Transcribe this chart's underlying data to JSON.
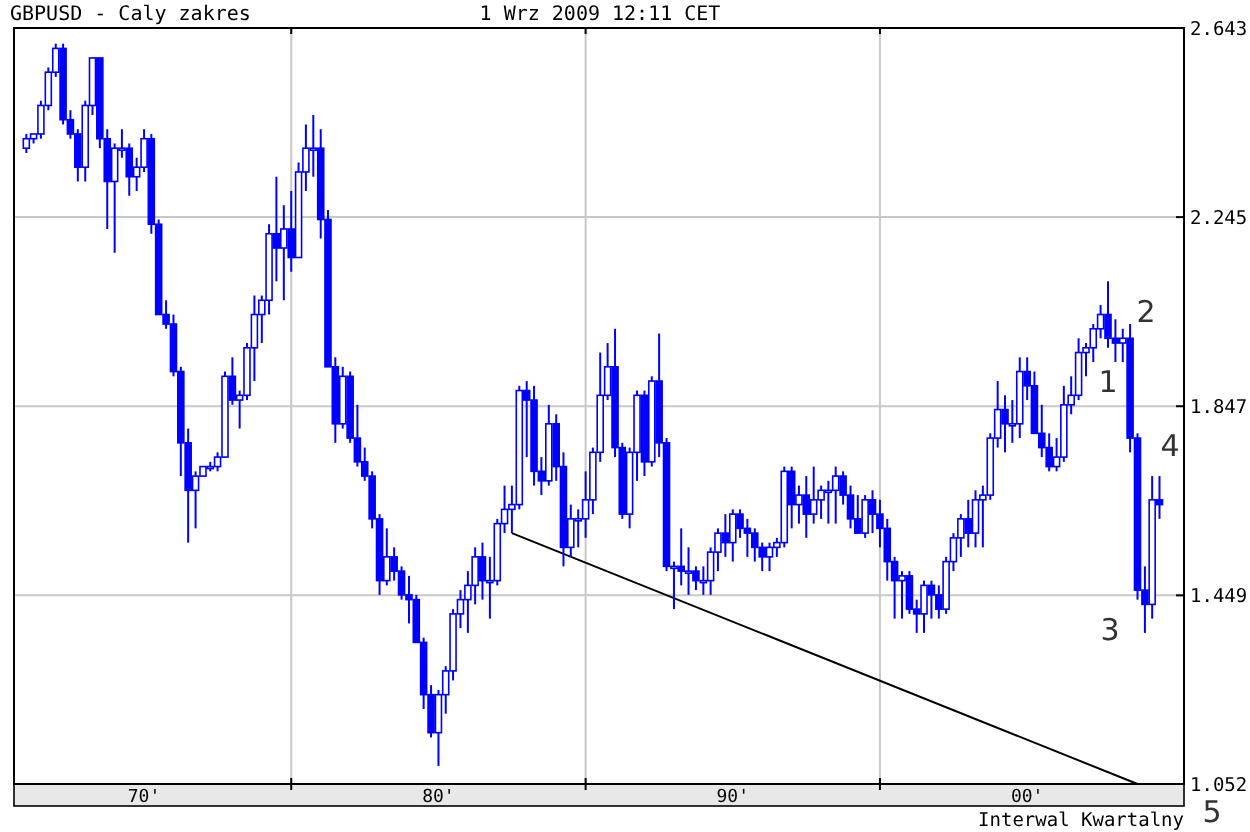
{
  "chart_data": {
    "type": "candlestick",
    "title": "GBPUSD - Caly zakres",
    "subtitle": "1 Wrz 2009 12:11 CET",
    "annotations": [
      "Interwal Kwartalny",
      "1",
      "2",
      "3",
      "4",
      "5"
    ],
    "xlim": [
      "1970-08",
      "2010-05"
    ],
    "xticks": [
      {
        "value": "1980",
        "label": null
      },
      {
        "value": "1990",
        "label": null
      },
      {
        "value": "2000",
        "label": null
      },
      {
        "value": "1975",
        "label": "70'"
      },
      {
        "value": "1985",
        "label": "80'"
      },
      {
        "value": "1995",
        "label": "90'"
      },
      {
        "value": "2005",
        "label": "00'"
      }
    ],
    "ylim": [
      1.052,
      2.643
    ],
    "yticks": [
      1.052,
      1.449,
      1.847,
      2.245,
      2.643
    ],
    "grid": true,
    "color": "#0000ff",
    "x": [
      "1971-01",
      "1971-04",
      "1971-07",
      "1971-10",
      "1972-01",
      "1972-04",
      "1972-07",
      "1972-10",
      "1973-01",
      "1973-04",
      "1973-07",
      "1973-10",
      "1974-01",
      "1974-04",
      "1974-07",
      "1974-10",
      "1975-01",
      "1975-04",
      "1975-07",
      "1975-10",
      "1976-01",
      "1976-04",
      "1976-07",
      "1976-10",
      "1977-01",
      "1977-04",
      "1977-07",
      "1977-10",
      "1978-01",
      "1978-04",
      "1978-07",
      "1978-10",
      "1979-01",
      "1979-04",
      "1979-07",
      "1979-10",
      "1980-01",
      "1980-04",
      "1980-07",
      "1980-10",
      "1981-01",
      "1981-04",
      "1981-07",
      "1981-10",
      "1982-01",
      "1982-04",
      "1982-07",
      "1982-10",
      "1983-01",
      "1983-04",
      "1983-07",
      "1983-10",
      "1984-01",
      "1984-04",
      "1984-07",
      "1984-10",
      "1985-01",
      "1985-04",
      "1985-07",
      "1985-10",
      "1986-01",
      "1986-04",
      "1986-07",
      "1986-10",
      "1987-01",
      "1987-04",
      "1987-07",
      "1987-10",
      "1988-01",
      "1988-04",
      "1988-07",
      "1988-10",
      "1989-01",
      "1989-04",
      "1989-07",
      "1989-10",
      "1990-01",
      "1990-04",
      "1990-07",
      "1990-10",
      "1991-01",
      "1991-04",
      "1991-07",
      "1991-10",
      "1992-01",
      "1992-04",
      "1992-07",
      "1992-10",
      "1993-01",
      "1993-04",
      "1993-07",
      "1993-10",
      "1994-01",
      "1994-04",
      "1994-07",
      "1994-10",
      "1995-01",
      "1995-04",
      "1995-07",
      "1995-10",
      "1996-01",
      "1996-04",
      "1996-07",
      "1996-10",
      "1997-01",
      "1997-04",
      "1997-07",
      "1997-10",
      "1998-01",
      "1998-04",
      "1998-07",
      "1998-10",
      "1999-01",
      "1999-04",
      "1999-07",
      "1999-10",
      "2000-01",
      "2000-04",
      "2000-07",
      "2000-10",
      "2001-01",
      "2001-04",
      "2001-07",
      "2001-10",
      "2002-01",
      "2002-04",
      "2002-07",
      "2002-10",
      "2003-01",
      "2003-04",
      "2003-07",
      "2003-10",
      "2004-01",
      "2004-04",
      "2004-07",
      "2004-10",
      "2005-01",
      "2005-04",
      "2005-07",
      "2005-10",
      "2006-01",
      "2006-04",
      "2006-07",
      "2006-10",
      "2007-01",
      "2007-04",
      "2007-07",
      "2007-10",
      "2008-01",
      "2008-04",
      "2008-07",
      "2008-10",
      "2009-01",
      "2009-04",
      "2009-07"
    ],
    "ohlc": [
      [
        2.39,
        2.42,
        2.38,
        2.41
      ],
      [
        2.41,
        2.42,
        2.4,
        2.42
      ],
      [
        2.42,
        2.49,
        2.41,
        2.48
      ],
      [
        2.48,
        2.56,
        2.47,
        2.55
      ],
      [
        2.55,
        2.61,
        2.54,
        2.6
      ],
      [
        2.6,
        2.61,
        2.44,
        2.45
      ],
      [
        2.45,
        2.47,
        2.41,
        2.42
      ],
      [
        2.42,
        2.43,
        2.32,
        2.35
      ],
      [
        2.35,
        2.49,
        2.32,
        2.48
      ],
      [
        2.48,
        2.58,
        2.46,
        2.58
      ],
      [
        2.58,
        2.58,
        2.39,
        2.41
      ],
      [
        2.41,
        2.43,
        2.22,
        2.32
      ],
      [
        2.32,
        2.4,
        2.17,
        2.39
      ],
      [
        2.39,
        2.43,
        2.37,
        2.39
      ],
      [
        2.39,
        2.4,
        2.29,
        2.33
      ],
      [
        2.33,
        2.37,
        2.3,
        2.35
      ],
      [
        2.35,
        2.43,
        2.34,
        2.41
      ],
      [
        2.41,
        2.42,
        2.21,
        2.23
      ],
      [
        2.23,
        2.24,
        2.04,
        2.04
      ],
      [
        2.04,
        2.07,
        2.01,
        2.02
      ],
      [
        2.02,
        2.04,
        1.91,
        1.92
      ],
      [
        1.92,
        1.93,
        1.7,
        1.77
      ],
      [
        1.77,
        1.8,
        1.56,
        1.67
      ],
      [
        1.67,
        1.71,
        1.59,
        1.7
      ],
      [
        1.7,
        1.72,
        1.7,
        1.72
      ],
      [
        1.72,
        1.73,
        1.71,
        1.72
      ],
      [
        1.72,
        1.75,
        1.71,
        1.74
      ],
      [
        1.74,
        1.92,
        1.74,
        1.91
      ],
      [
        1.91,
        1.95,
        1.85,
        1.86
      ],
      [
        1.86,
        1.88,
        1.8,
        1.87
      ],
      [
        1.87,
        1.98,
        1.86,
        1.97
      ],
      [
        1.97,
        2.08,
        1.9,
        2.04
      ],
      [
        2.04,
        2.08,
        1.98,
        2.07
      ],
      [
        2.07,
        2.23,
        2.04,
        2.21
      ],
      [
        2.21,
        2.33,
        2.11,
        2.18
      ],
      [
        2.18,
        2.27,
        2.07,
        2.22
      ],
      [
        2.22,
        2.3,
        2.13,
        2.16
      ],
      [
        2.16,
        2.36,
        2.16,
        2.34
      ],
      [
        2.34,
        2.44,
        2.3,
        2.39
      ],
      [
        2.39,
        2.46,
        2.33,
        2.39
      ],
      [
        2.39,
        2.43,
        2.2,
        2.24
      ],
      [
        2.24,
        2.26,
        1.93,
        1.93
      ],
      [
        1.93,
        1.95,
        1.77,
        1.81
      ],
      [
        1.81,
        1.93,
        1.8,
        1.91
      ],
      [
        1.91,
        1.92,
        1.77,
        1.78
      ],
      [
        1.78,
        1.85,
        1.72,
        1.73
      ],
      [
        1.73,
        1.76,
        1.69,
        1.7
      ],
      [
        1.7,
        1.71,
        1.59,
        1.61
      ],
      [
        1.61,
        1.62,
        1.45,
        1.48
      ],
      [
        1.48,
        1.59,
        1.47,
        1.53
      ],
      [
        1.53,
        1.55,
        1.48,
        1.5
      ],
      [
        1.5,
        1.51,
        1.44,
        1.45
      ],
      [
        1.45,
        1.49,
        1.39,
        1.44
      ],
      [
        1.44,
        1.45,
        1.35,
        1.35
      ],
      [
        1.35,
        1.36,
        1.21,
        1.24
      ],
      [
        1.24,
        1.26,
        1.15,
        1.16
      ],
      [
        1.16,
        1.25,
        1.09,
        1.24
      ],
      [
        1.24,
        1.3,
        1.2,
        1.29
      ],
      [
        1.29,
        1.42,
        1.27,
        1.41
      ],
      [
        1.41,
        1.46,
        1.38,
        1.44
      ],
      [
        1.44,
        1.5,
        1.37,
        1.47
      ],
      [
        1.47,
        1.55,
        1.43,
        1.53
      ],
      [
        1.53,
        1.56,
        1.44,
        1.48
      ],
      [
        1.48,
        1.53,
        1.4,
        1.48
      ],
      [
        1.48,
        1.61,
        1.47,
        1.6
      ],
      [
        1.6,
        1.68,
        1.58,
        1.63
      ],
      [
        1.63,
        1.68,
        1.58,
        1.64
      ],
      [
        1.64,
        1.89,
        1.63,
        1.88
      ],
      [
        1.88,
        1.9,
        1.74,
        1.86
      ],
      [
        1.86,
        1.89,
        1.68,
        1.71
      ],
      [
        1.71,
        1.74,
        1.66,
        1.69
      ],
      [
        1.69,
        1.85,
        1.68,
        1.81
      ],
      [
        1.81,
        1.83,
        1.69,
        1.72
      ],
      [
        1.72,
        1.75,
        1.51,
        1.55
      ],
      [
        1.55,
        1.64,
        1.53,
        1.61
      ],
      [
        1.61,
        1.63,
        1.55,
        1.61
      ],
      [
        1.61,
        1.71,
        1.57,
        1.65
      ],
      [
        1.65,
        1.76,
        1.62,
        1.75
      ],
      [
        1.75,
        1.96,
        1.73,
        1.87
      ],
      [
        1.87,
        1.98,
        1.86,
        1.93
      ],
      [
        1.93,
        2.01,
        1.74,
        1.76
      ],
      [
        1.76,
        1.77,
        1.61,
        1.62
      ],
      [
        1.62,
        1.76,
        1.59,
        1.75
      ],
      [
        1.75,
        1.88,
        1.69,
        1.87
      ],
      [
        1.87,
        1.88,
        1.7,
        1.73
      ],
      [
        1.73,
        1.91,
        1.72,
        1.9
      ],
      [
        1.9,
        2.0,
        1.74,
        1.77
      ],
      [
        1.77,
        1.78,
        1.5,
        1.51
      ],
      [
        1.51,
        1.52,
        1.42,
        1.51
      ],
      [
        1.51,
        1.59,
        1.47,
        1.5
      ],
      [
        1.5,
        1.55,
        1.45,
        1.5
      ],
      [
        1.5,
        1.51,
        1.46,
        1.48
      ],
      [
        1.48,
        1.51,
        1.45,
        1.48
      ],
      [
        1.48,
        1.55,
        1.45,
        1.54
      ],
      [
        1.54,
        1.59,
        1.5,
        1.58
      ],
      [
        1.58,
        1.62,
        1.53,
        1.56
      ],
      [
        1.56,
        1.63,
        1.52,
        1.62
      ],
      [
        1.62,
        1.63,
        1.57,
        1.59
      ],
      [
        1.59,
        1.61,
        1.53,
        1.58
      ],
      [
        1.58,
        1.59,
        1.52,
        1.55
      ],
      [
        1.55,
        1.56,
        1.5,
        1.53
      ],
      [
        1.53,
        1.56,
        1.5,
        1.55
      ],
      [
        1.55,
        1.57,
        1.53,
        1.56
      ],
      [
        1.56,
        1.72,
        1.55,
        1.71
      ],
      [
        1.71,
        1.72,
        1.59,
        1.64
      ],
      [
        1.64,
        1.68,
        1.6,
        1.66
      ],
      [
        1.66,
        1.7,
        1.57,
        1.62
      ],
      [
        1.62,
        1.72,
        1.6,
        1.65
      ],
      [
        1.65,
        1.68,
        1.61,
        1.67
      ],
      [
        1.67,
        1.69,
        1.6,
        1.67
      ],
      [
        1.67,
        1.72,
        1.6,
        1.7
      ],
      [
        1.7,
        1.71,
        1.64,
        1.66
      ],
      [
        1.66,
        1.68,
        1.59,
        1.61
      ],
      [
        1.61,
        1.66,
        1.58,
        1.58
      ],
      [
        1.58,
        1.66,
        1.57,
        1.65
      ],
      [
        1.65,
        1.67,
        1.58,
        1.62
      ],
      [
        1.62,
        1.65,
        1.55,
        1.59
      ],
      [
        1.59,
        1.61,
        1.48,
        1.52
      ],
      [
        1.52,
        1.53,
        1.4,
        1.48
      ],
      [
        1.48,
        1.5,
        1.4,
        1.49
      ],
      [
        1.49,
        1.5,
        1.41,
        1.42
      ],
      [
        1.42,
        1.44,
        1.37,
        1.41
      ],
      [
        1.41,
        1.48,
        1.37,
        1.47
      ],
      [
        1.47,
        1.48,
        1.4,
        1.45
      ],
      [
        1.45,
        1.47,
        1.4,
        1.42
      ],
      [
        1.42,
        1.53,
        1.41,
        1.52
      ],
      [
        1.52,
        1.58,
        1.5,
        1.57
      ],
      [
        1.57,
        1.62,
        1.53,
        1.61
      ],
      [
        1.61,
        1.65,
        1.55,
        1.58
      ],
      [
        1.58,
        1.67,
        1.55,
        1.65
      ],
      [
        1.65,
        1.68,
        1.55,
        1.66
      ],
      [
        1.66,
        1.79,
        1.65,
        1.78
      ],
      [
        1.78,
        1.9,
        1.76,
        1.84
      ],
      [
        1.84,
        1.87,
        1.75,
        1.81
      ],
      [
        1.81,
        1.86,
        1.77,
        1.81
      ],
      [
        1.81,
        1.95,
        1.78,
        1.92
      ],
      [
        1.92,
        1.95,
        1.86,
        1.89
      ],
      [
        1.89,
        1.92,
        1.79,
        1.79
      ],
      [
        1.79,
        1.85,
        1.74,
        1.76
      ],
      [
        1.76,
        1.79,
        1.71,
        1.72
      ],
      [
        1.72,
        1.78,
        1.71,
        1.74
      ],
      [
        1.74,
        1.89,
        1.73,
        1.85
      ],
      [
        1.85,
        1.91,
        1.83,
        1.87
      ],
      [
        1.87,
        1.99,
        1.86,
        1.96
      ],
      [
        1.96,
        1.98,
        1.91,
        1.97
      ],
      [
        1.97,
        2.02,
        1.94,
        2.01
      ],
      [
        2.01,
        2.06,
        1.99,
        2.04
      ],
      [
        2.04,
        2.11,
        1.97,
        1.99
      ],
      [
        1.99,
        2.03,
        1.94,
        1.98
      ],
      [
        1.98,
        2.01,
        1.94,
        1.99
      ],
      [
        1.99,
        2.02,
        1.75,
        1.78
      ],
      [
        1.78,
        1.79,
        1.44,
        1.46
      ],
      [
        1.46,
        1.51,
        1.37,
        1.43
      ],
      [
        1.43,
        1.7,
        1.4,
        1.65
      ],
      [
        1.65,
        1.7,
        1.61,
        1.64
      ]
    ],
    "series": [
      {
        "type": "line",
        "color": "#000000",
        "x": [
          "1987-07",
          "2008-10"
        ],
        "values": [
          1.58,
          1.052
        ]
      }
    ]
  }
}
